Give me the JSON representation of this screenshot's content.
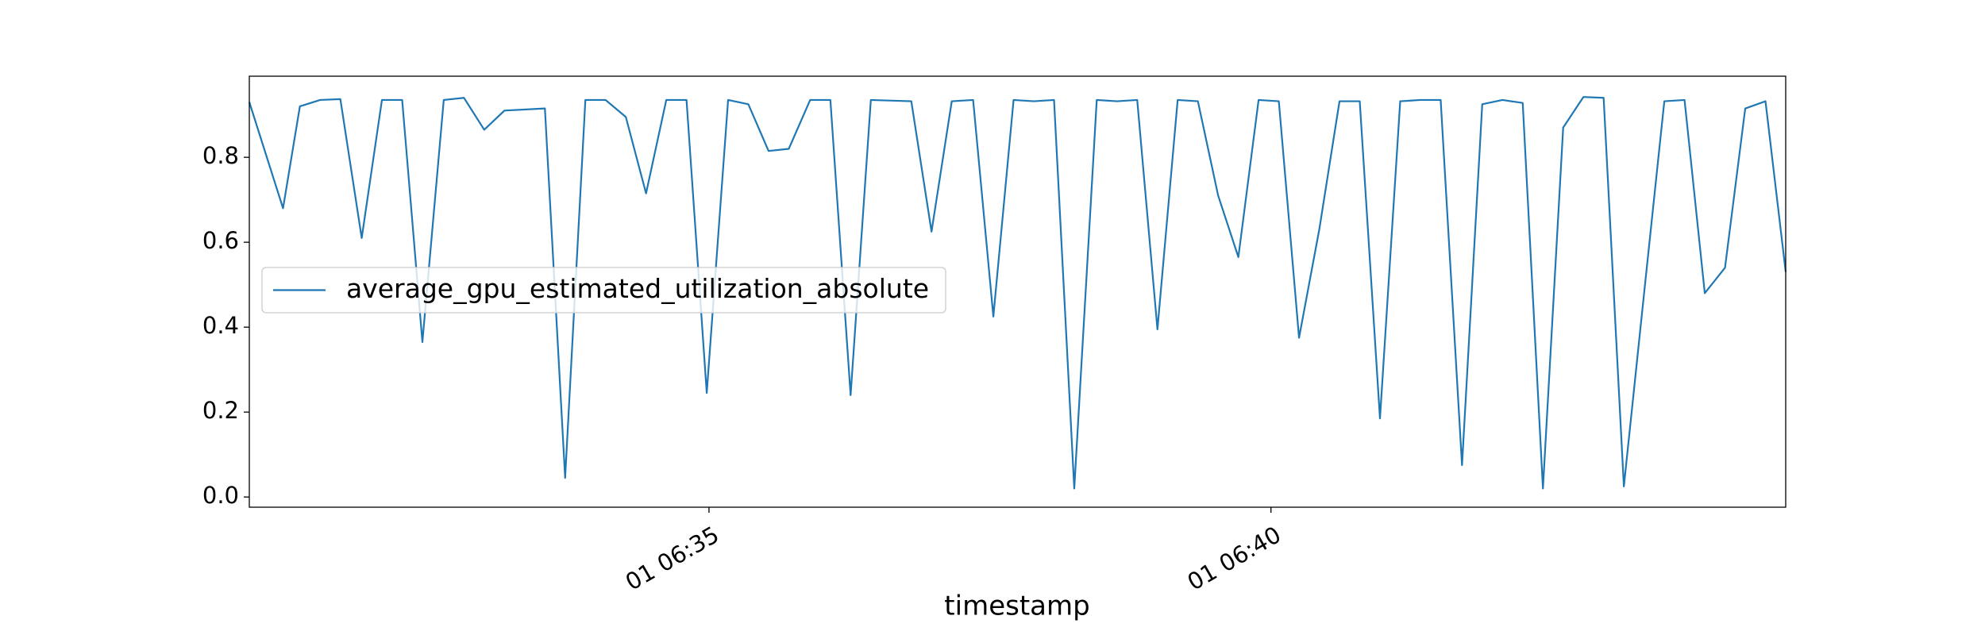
{
  "chart_data": {
    "type": "line",
    "xlabel": "timestamp",
    "x": [
      30.91,
      31.21,
      31.36,
      31.54,
      31.72,
      31.91,
      32.09,
      32.27,
      32.45,
      32.64,
      32.82,
      33.0,
      33.18,
      33.54,
      33.72,
      33.9,
      34.08,
      34.26,
      34.44,
      34.62,
      34.8,
      34.98,
      35.17,
      35.35,
      35.53,
      35.71,
      35.9,
      36.08,
      36.26,
      36.44,
      36.8,
      36.98,
      37.16,
      37.35,
      37.53,
      37.71,
      37.89,
      38.07,
      38.25,
      38.45,
      38.63,
      38.81,
      38.99,
      39.17,
      39.35,
      39.53,
      39.71,
      39.89,
      40.07,
      40.25,
      40.43,
      40.61,
      40.79,
      40.97,
      41.15,
      41.33,
      41.51,
      41.7,
      41.88,
      42.06,
      42.24,
      42.42,
      42.6,
      42.78,
      42.96,
      43.14,
      43.32,
      43.5,
      43.68,
      43.86,
      44.04,
      44.22,
      44.4,
      44.58
    ],
    "series": [
      {
        "name": "average_gpu_estimated_utilization_absolute",
        "color": "#1f77b4",
        "values": [
          0.93,
          0.68,
          0.92,
          0.935,
          0.937,
          0.61,
          0.935,
          0.935,
          0.365,
          0.935,
          0.94,
          0.865,
          0.91,
          0.915,
          0.045,
          0.935,
          0.935,
          0.895,
          0.715,
          0.935,
          0.935,
          0.245,
          0.935,
          0.925,
          0.815,
          0.82,
          0.935,
          0.935,
          0.24,
          0.935,
          0.932,
          0.625,
          0.932,
          0.935,
          0.425,
          0.935,
          0.932,
          0.935,
          0.02,
          0.935,
          0.932,
          0.935,
          0.395,
          0.935,
          0.932,
          0.71,
          0.565,
          0.935,
          0.932,
          0.375,
          0.63,
          0.932,
          0.932,
          0.185,
          0.932,
          0.935,
          0.935,
          0.075,
          0.925,
          0.935,
          0.928,
          0.02,
          0.87,
          0.942,
          0.94,
          0.025,
          0.48,
          0.932,
          0.935,
          0.48,
          0.54,
          0.915,
          0.932,
          0.53
        ]
      }
    ],
    "xlim": [
      30.91,
      44.58
    ],
    "xticks": [
      {
        "value": 35,
        "label": "01 06:35"
      },
      {
        "value": 40,
        "label": "01 06:40"
      }
    ],
    "ylim": [
      -0.024,
      0.991
    ],
    "yticks": [
      {
        "value": 0,
        "label": "0.0"
      },
      {
        "value": 0.2,
        "label": "0.2"
      },
      {
        "value": 0.4,
        "label": "0.4"
      },
      {
        "value": 0.6,
        "label": "0.6"
      },
      {
        "value": 0.8,
        "label": "0.8"
      }
    ],
    "legend": "center left",
    "grid": false
  }
}
